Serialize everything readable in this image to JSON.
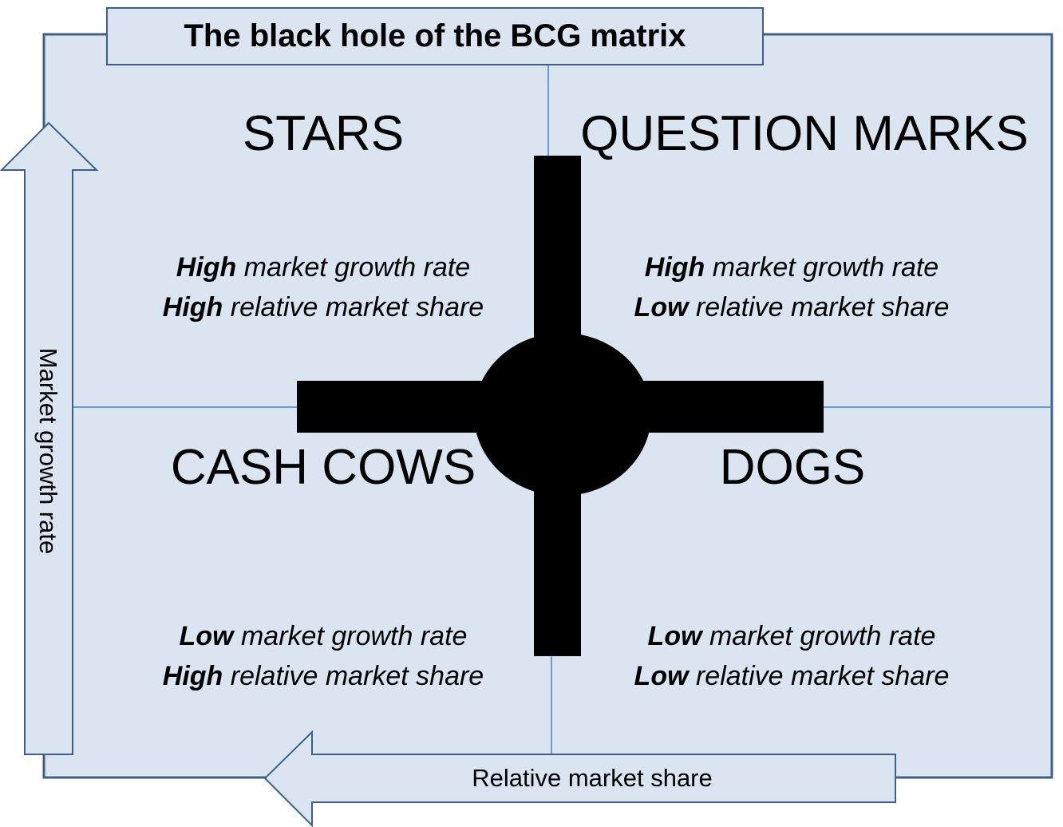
{
  "title": "The black hole of the BCG matrix",
  "axes": {
    "y_label": "Market growth rate",
    "x_label": "Relative market share"
  },
  "quadrants": {
    "stars": {
      "name": "STARS",
      "growth_level": "High",
      "growth_text": "market growth rate",
      "share_level": "High",
      "share_text": "relative market share"
    },
    "question_marks": {
      "name": "QUESTION MARKS",
      "growth_level": "High",
      "growth_text": "market growth rate",
      "share_level": "Low",
      "share_text": "relative market share"
    },
    "cash_cows": {
      "name": "CASH COWS",
      "growth_level": "Low",
      "growth_text": "market growth rate",
      "share_level": "High",
      "share_text": "relative market share"
    },
    "dogs": {
      "name": "DOGS",
      "growth_level": "Low",
      "growth_text": "market growth rate",
      "share_level": "Low",
      "share_text": "relative market share"
    }
  },
  "colors": {
    "panel_fill": "#dbe5f2",
    "border": "#3f5f86",
    "grid_line": "#4f81bd",
    "black_hole": "#000000"
  }
}
